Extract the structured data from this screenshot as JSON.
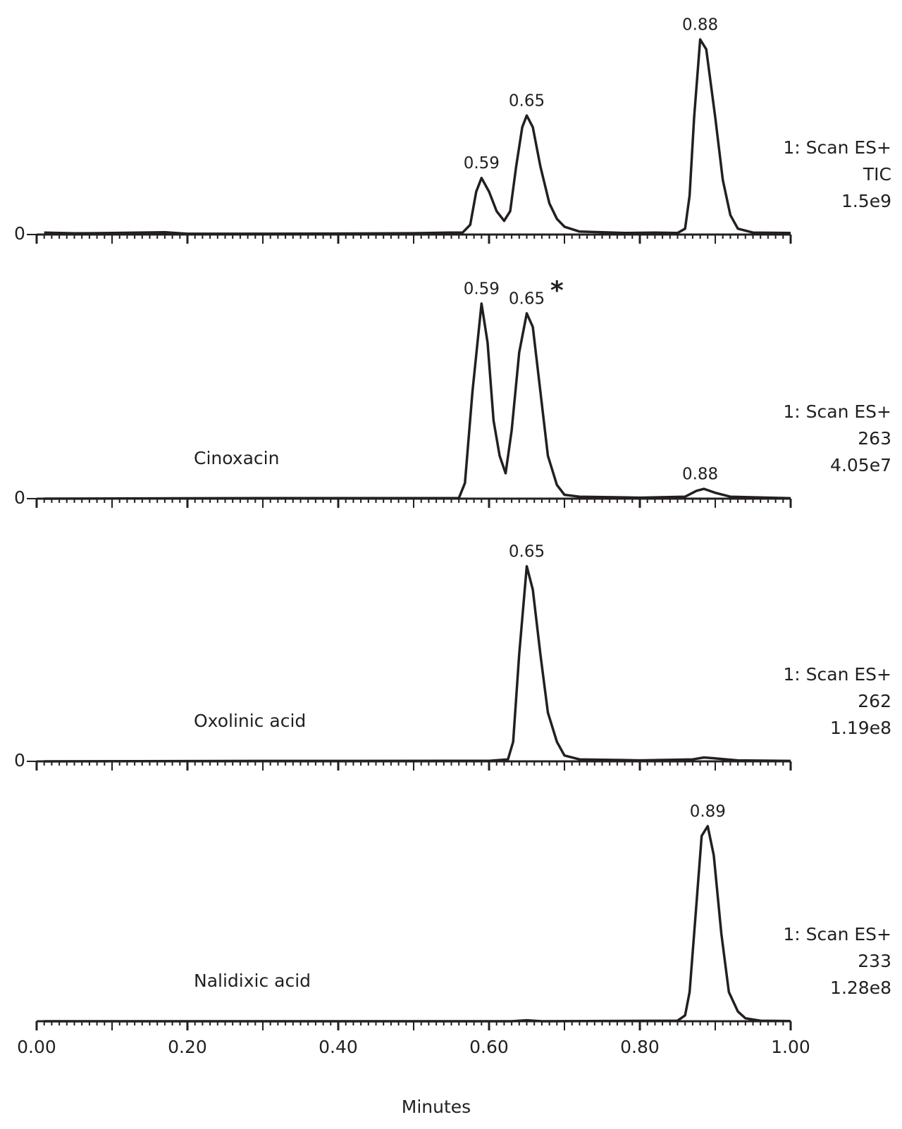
{
  "chart_data": [
    {
      "type": "line",
      "xlim": [
        0,
        1
      ],
      "ylim": [
        0,
        100
      ],
      "yticks": [
        0
      ],
      "scan": "1: Scan ES+",
      "trace": "TIC",
      "intensity": "1.5e9",
      "x": [
        0.01,
        0.05,
        0.1,
        0.17,
        0.2,
        0.3,
        0.4,
        0.5,
        0.55,
        0.565,
        0.575,
        0.583,
        0.59,
        0.6,
        0.61,
        0.62,
        0.628,
        0.636,
        0.644,
        0.65,
        0.658,
        0.668,
        0.68,
        0.69,
        0.7,
        0.72,
        0.78,
        0.82,
        0.85,
        0.86,
        0.866,
        0.872,
        0.88,
        0.888,
        0.9,
        0.91,
        0.92,
        0.93,
        0.95,
        1.0
      ],
      "values": [
        1,
        0.6,
        0.8,
        1.2,
        0.4,
        0.4,
        0.5,
        0.7,
        1,
        1,
        5,
        22,
        29,
        22,
        12,
        7,
        12,
        35,
        55,
        61,
        55,
        35,
        16,
        8,
        4,
        1.5,
        0.8,
        1,
        0.8,
        3,
        20,
        60,
        100,
        95,
        60,
        28,
        10,
        3,
        1,
        0.8
      ],
      "annotations": [
        {
          "text": "0.59",
          "x": 0.59,
          "y": 29
        },
        {
          "text": "0.65",
          "x": 0.65,
          "y": 61
        },
        {
          "text": "0.88",
          "x": 0.88,
          "y": 100
        }
      ]
    },
    {
      "type": "line",
      "xlim": [
        0,
        1
      ],
      "ylim": [
        0,
        100
      ],
      "yticks": [
        0
      ],
      "name": "Cinoxacin",
      "scan": "1: Scan ES+",
      "trace": "263",
      "intensity": "4.05e7",
      "x": [
        0.01,
        0.3,
        0.5,
        0.56,
        0.568,
        0.578,
        0.59,
        0.598,
        0.606,
        0.614,
        0.622,
        0.63,
        0.64,
        0.65,
        0.658,
        0.668,
        0.678,
        0.69,
        0.7,
        0.72,
        0.8,
        0.86,
        0.875,
        0.885,
        0.9,
        0.92,
        1.0
      ],
      "values": [
        0,
        0.3,
        0.3,
        0.3,
        8,
        55,
        100,
        80,
        40,
        22,
        13,
        35,
        75,
        95,
        88,
        55,
        22,
        7,
        2,
        1,
        0.5,
        1,
        4,
        5,
        3,
        1,
        0.2
      ],
      "annotations": [
        {
          "text": "0.59",
          "x": 0.59,
          "y": 100
        },
        {
          "text": "0.65",
          "x": 0.65,
          "y": 95
        },
        {
          "text": "0.88",
          "x": 0.88,
          "y": 5
        },
        {
          "text": "*",
          "x": 0.69,
          "y": 103
        }
      ]
    },
    {
      "type": "line",
      "xlim": [
        0,
        1
      ],
      "ylim": [
        0,
        100
      ],
      "yticks": [
        0
      ],
      "name": "Oxolinic acid",
      "scan": "1: Scan ES+",
      "trace": "262",
      "intensity": "1.19e8",
      "x": [
        0.01,
        0.3,
        0.6,
        0.625,
        0.632,
        0.64,
        0.65,
        0.658,
        0.668,
        0.678,
        0.69,
        0.7,
        0.72,
        0.8,
        0.87,
        0.885,
        0.9,
        0.93,
        1.0
      ],
      "values": [
        0,
        0.2,
        0.3,
        1,
        10,
        55,
        100,
        88,
        55,
        25,
        10,
        3,
        1,
        0.5,
        1,
        2,
        1.5,
        0.5,
        0.2
      ],
      "annotations": [
        {
          "text": "0.65",
          "x": 0.65,
          "y": 100
        }
      ]
    },
    {
      "type": "line",
      "xlim": [
        0,
        1
      ],
      "ylim": [
        0,
        100
      ],
      "name": "Nalidixic acid",
      "scan": "1: Scan ES+",
      "trace": "233",
      "intensity": "1.28e8",
      "x": [
        0.01,
        0.3,
        0.63,
        0.65,
        0.67,
        0.85,
        0.86,
        0.866,
        0.874,
        0.882,
        0.89,
        0.898,
        0.908,
        0.918,
        0.93,
        0.94,
        0.96,
        1.0
      ],
      "values": [
        0,
        0,
        0,
        0.5,
        0,
        0.3,
        3,
        15,
        55,
        95,
        100,
        85,
        45,
        15,
        5,
        1.5,
        0.3,
        0.1
      ],
      "annotations": [
        {
          "text": "0.89",
          "x": 0.89,
          "y": 100
        }
      ],
      "xticks": [
        {
          "value": 0,
          "label": "0.00"
        },
        {
          "value": 0.2,
          "label": "0.20"
        },
        {
          "value": 0.4,
          "label": "0.40"
        },
        {
          "value": 0.6,
          "label": "0.60"
        },
        {
          "value": 0.8,
          "label": "0.80"
        },
        {
          "value": 1,
          "label": "1.00"
        }
      ],
      "xlabel": "Minutes"
    }
  ]
}
